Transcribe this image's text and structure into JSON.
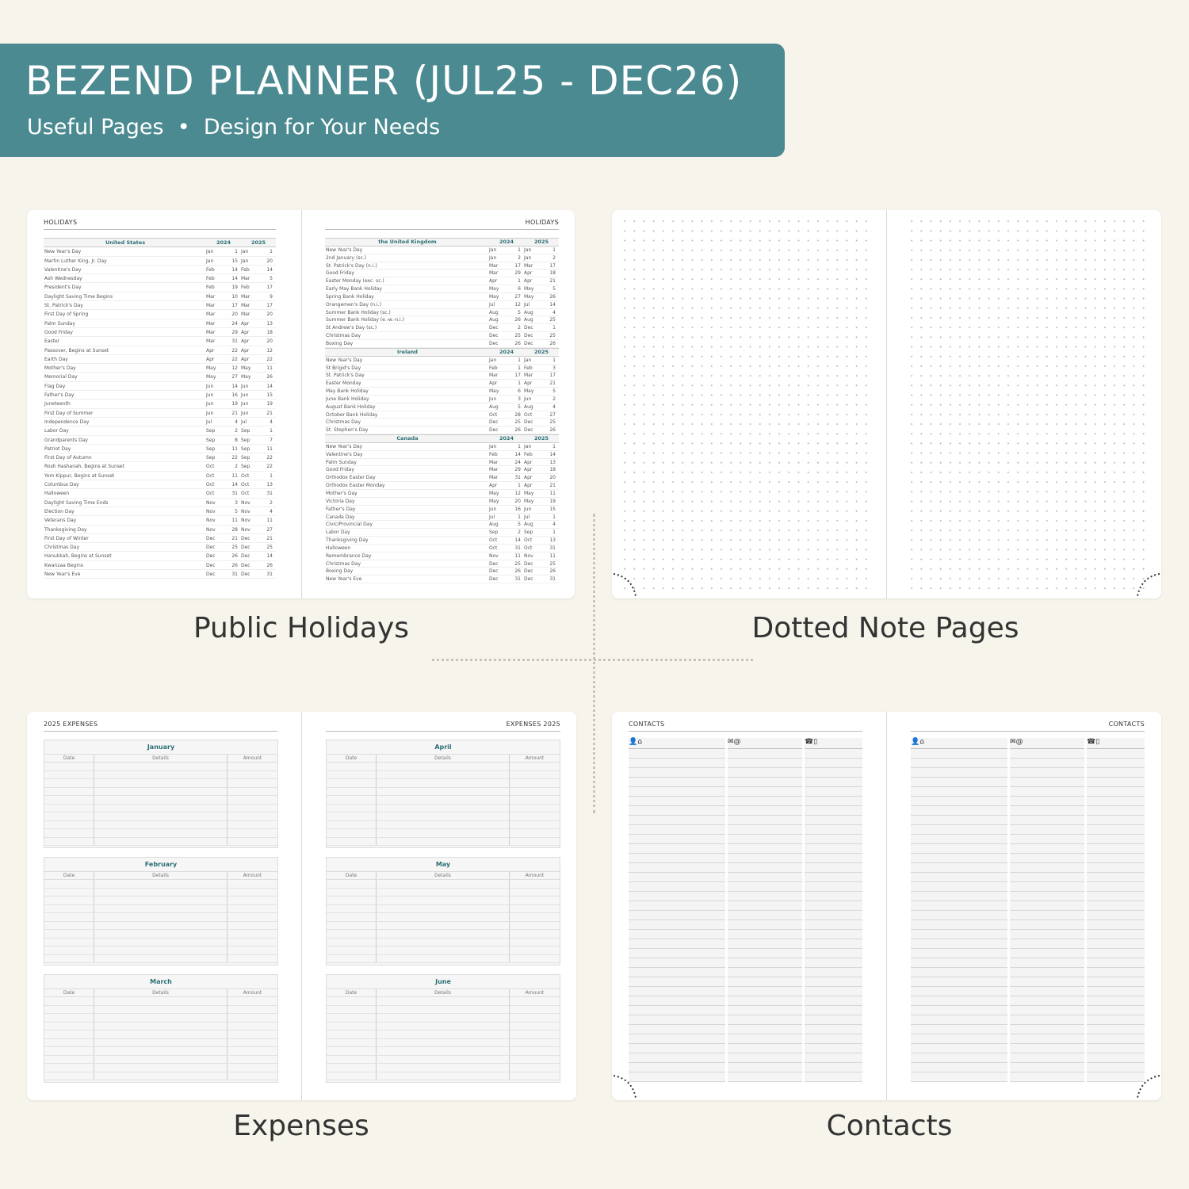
{
  "banner": {
    "title": "BEZEND PLANNER (JUL25 - DEC26)",
    "subtitle_left": "Useful Pages",
    "subtitle_sep": "•",
    "subtitle_right": "Design for Your Needs",
    "color": "#4b8a90"
  },
  "labels": {
    "holidays": "Public Holidays",
    "dotted": "Dotted Note Pages",
    "expenses": "Expenses",
    "contacts": "Contacts"
  },
  "holidays": {
    "title": "HOLIDAYS",
    "years": [
      "2024",
      "2025"
    ],
    "us": {
      "country": "United States",
      "rows": [
        [
          "New Year's Day",
          "Jan",
          "1",
          "Jan",
          "1"
        ],
        [
          "Martin Luther King, Jr. Day",
          "Jan",
          "15",
          "Jan",
          "20"
        ],
        [
          "Valentine's Day",
          "Feb",
          "14",
          "Feb",
          "14"
        ],
        [
          "Ash Wednesday",
          "Feb",
          "14",
          "Mar",
          "5"
        ],
        [
          "President's Day",
          "Feb",
          "19",
          "Feb",
          "17"
        ],
        [
          "Daylight Saving Time Begins",
          "Mar",
          "10",
          "Mar",
          "9"
        ],
        [
          "St. Patrick's Day",
          "Mar",
          "17",
          "Mar",
          "17"
        ],
        [
          "First Day of Spring",
          "Mar",
          "20",
          "Mar",
          "20"
        ],
        [
          "Palm Sunday",
          "Mar",
          "24",
          "Apr",
          "13"
        ],
        [
          "Good Friday",
          "Mar",
          "29",
          "Apr",
          "18"
        ],
        [
          "Easter",
          "Mar",
          "31",
          "Apr",
          "20"
        ],
        [
          "Passover, Begins at Sunset",
          "Apr",
          "22",
          "Apr",
          "12"
        ],
        [
          "Earth Day",
          "Apr",
          "22",
          "Apr",
          "22"
        ],
        [
          "Mother's Day",
          "May",
          "12",
          "May",
          "11"
        ],
        [
          "Memorial Day",
          "May",
          "27",
          "May",
          "26"
        ],
        [
          "Flag Day",
          "Jun",
          "14",
          "Jun",
          "14"
        ],
        [
          "Father's Day",
          "Jun",
          "16",
          "Jun",
          "15"
        ],
        [
          "Juneteenth",
          "Jun",
          "19",
          "Jun",
          "19"
        ],
        [
          "First Day of Summer",
          "Jun",
          "21",
          "Jun",
          "21"
        ],
        [
          "Independence Day",
          "Jul",
          "4",
          "Jul",
          "4"
        ],
        [
          "Labor Day",
          "Sep",
          "2",
          "Sep",
          "1"
        ],
        [
          "Grandparents Day",
          "Sep",
          "8",
          "Sep",
          "7"
        ],
        [
          "Patriot Day",
          "Sep",
          "11",
          "Sep",
          "11"
        ],
        [
          "First Day of Autumn",
          "Sep",
          "22",
          "Sep",
          "22"
        ],
        [
          "Rosh Hashanah, Begins at Sunset",
          "Oct",
          "2",
          "Sep",
          "22"
        ],
        [
          "Yom Kippur, Begins at Sunset",
          "Oct",
          "11",
          "Oct",
          "1"
        ],
        [
          "Columbus Day",
          "Oct",
          "14",
          "Oct",
          "13"
        ],
        [
          "Halloween",
          "Oct",
          "31",
          "Oct",
          "31"
        ],
        [
          "Daylight Saving Time Ends",
          "Nov",
          "3",
          "Nov",
          "2"
        ],
        [
          "Election Day",
          "Nov",
          "5",
          "Nov",
          "4"
        ],
        [
          "Veterans Day",
          "Nov",
          "11",
          "Nov",
          "11"
        ],
        [
          "Thanksgiving Day",
          "Nov",
          "28",
          "Nov",
          "27"
        ],
        [
          "First Day of Winter",
          "Dec",
          "21",
          "Dec",
          "21"
        ],
        [
          "Christmas Day",
          "Dec",
          "25",
          "Dec",
          "25"
        ],
        [
          "Hanukkah, Begins at Sunset",
          "Dec",
          "26",
          "Dec",
          "14"
        ],
        [
          "Kwanzaa Begins",
          "Dec",
          "26",
          "Dec",
          "26"
        ],
        [
          "New Year's Eve",
          "Dec",
          "31",
          "Dec",
          "31"
        ]
      ]
    },
    "uk": {
      "country": "the United Kingdom",
      "rows": [
        [
          "New Year's Day",
          "Jan",
          "1",
          "Jan",
          "1"
        ],
        [
          "2nd January (sc.)",
          "Jan",
          "2",
          "Jan",
          "2"
        ],
        [
          "St. Patrick's Day (n.i.)",
          "Mar",
          "17",
          "Mar",
          "17"
        ],
        [
          "Good Friday",
          "Mar",
          "29",
          "Apr",
          "18"
        ],
        [
          "Easter Monday (exc. sc.)",
          "Apr",
          "1",
          "Apr",
          "21"
        ],
        [
          "Early May Bank Holiday",
          "May",
          "6",
          "May",
          "5"
        ],
        [
          "Spring Bank Holiday",
          "May",
          "27",
          "May",
          "26"
        ],
        [
          "Orangemen's Day (n.i.)",
          "Jul",
          "12",
          "Jul",
          "14"
        ],
        [
          "Summer Bank Holiday (sc.)",
          "Aug",
          "5",
          "Aug",
          "4"
        ],
        [
          "Summer Bank Holiday (e.-w.-n.i.)",
          "Aug",
          "26",
          "Aug",
          "25"
        ],
        [
          "St Andrew's Day (sc.)",
          "Dec",
          "2",
          "Dec",
          "1"
        ],
        [
          "Christmas Day",
          "Dec",
          "25",
          "Dec",
          "25"
        ],
        [
          "Boxing Day",
          "Dec",
          "26",
          "Dec",
          "26"
        ]
      ]
    },
    "ie": {
      "country": "Ireland",
      "rows": [
        [
          "New Year's Day",
          "Jan",
          "1",
          "Jan",
          "1"
        ],
        [
          "St Brigid's Day",
          "Feb",
          "1",
          "Feb",
          "3"
        ],
        [
          "St. Patrick's Day",
          "Mar",
          "17",
          "Mar",
          "17"
        ],
        [
          "Easter Monday",
          "Apr",
          "1",
          "Apr",
          "21"
        ],
        [
          "May Bank Holiday",
          "May",
          "6",
          "May",
          "5"
        ],
        [
          "June Bank Holiday",
          "Jun",
          "3",
          "Jun",
          "2"
        ],
        [
          "August Bank Holiday",
          "Aug",
          "5",
          "Aug",
          "4"
        ],
        [
          "October Bank Holiday",
          "Oct",
          "28",
          "Oct",
          "27"
        ],
        [
          "Christmas Day",
          "Dec",
          "25",
          "Dec",
          "25"
        ],
        [
          "St. Stephen's Day",
          "Dec",
          "26",
          "Dec",
          "26"
        ]
      ]
    },
    "ca": {
      "country": "Canada",
      "rows": [
        [
          "New Year's Day",
          "Jan",
          "1",
          "Jan",
          "1"
        ],
        [
          "Valentine's Day",
          "Feb",
          "14",
          "Feb",
          "14"
        ],
        [
          "Palm Sunday",
          "Mar",
          "24",
          "Apr",
          "13"
        ],
        [
          "Good Friday",
          "Mar",
          "29",
          "Apr",
          "18"
        ],
        [
          "Orthodox Easter Day",
          "Mar",
          "31",
          "Apr",
          "20"
        ],
        [
          "Orthodox Easter Monday",
          "Apr",
          "1",
          "Apr",
          "21"
        ],
        [
          "Mother's Day",
          "May",
          "12",
          "May",
          "11"
        ],
        [
          "Victoria Day",
          "May",
          "20",
          "May",
          "19"
        ],
        [
          "Father's Day",
          "Jun",
          "16",
          "Jun",
          "15"
        ],
        [
          "Canada Day",
          "Jul",
          "1",
          "Jul",
          "1"
        ],
        [
          "Civic/Provincial Day",
          "Aug",
          "5",
          "Aug",
          "4"
        ],
        [
          "Labor Day",
          "Sep",
          "2",
          "Sep",
          "1"
        ],
        [
          "Thanksgiving Day",
          "Oct",
          "14",
          "Oct",
          "13"
        ],
        [
          "Halloween",
          "Oct",
          "31",
          "Oct",
          "31"
        ],
        [
          "Remembrance Day",
          "Nov",
          "11",
          "Nov",
          "11"
        ],
        [
          "Christmas Day",
          "Dec",
          "25",
          "Dec",
          "25"
        ],
        [
          "Boxing Day",
          "Dec",
          "26",
          "Dec",
          "26"
        ],
        [
          "New Year's Eve",
          "Dec",
          "31",
          "Dec",
          "31"
        ]
      ]
    }
  },
  "expenses": {
    "left_title": "2025 EXPENSES",
    "right_title": "EXPENSES 2025",
    "columns": [
      "Date",
      "Details",
      "Amount"
    ],
    "left_months": [
      "January",
      "February",
      "March"
    ],
    "right_months": [
      "April",
      "May",
      "June"
    ]
  },
  "contacts": {
    "title": "CONTACTS",
    "icons": [
      "person-home-icon",
      "mail-at-icon",
      "phone-mobile-icon"
    ],
    "icon_glyphs": [
      "👤⌂",
      "✉@",
      "☎▯"
    ]
  }
}
